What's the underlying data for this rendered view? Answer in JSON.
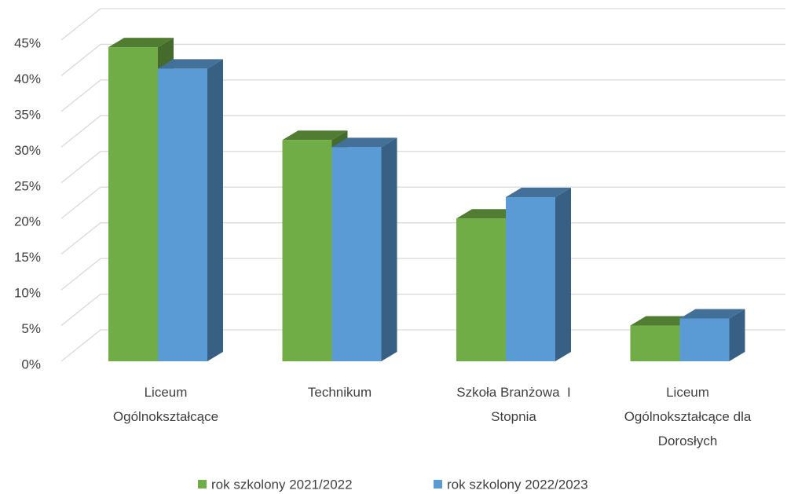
{
  "chart_data": {
    "type": "bar3d",
    "categories": [
      "Liceum Ogólnokształcące",
      "Technikum",
      "Szkoła Branżowa  I Stopnia",
      "Liceum Ogólnokształcące dla Dorosłych"
    ],
    "series": [
      {
        "name": "rok szkolony 2021/2022",
        "color": "#70ad47",
        "values": [
          44,
          31,
          20,
          5
        ]
      },
      {
        "name": "rok szkolony 2022/2023",
        "color": "#5b9bd5",
        "values": [
          41,
          30,
          23,
          6
        ]
      }
    ],
    "ylim": [
      0,
      45
    ],
    "yticks": [
      {
        "value": 0,
        "label": "0%"
      },
      {
        "value": 5,
        "label": "5%"
      },
      {
        "value": 10,
        "label": "10%"
      },
      {
        "value": 15,
        "label": "15%"
      },
      {
        "value": 20,
        "label": "20%"
      },
      {
        "value": 25,
        "label": "25%"
      },
      {
        "value": 30,
        "label": "30%"
      },
      {
        "value": 35,
        "label": "35%"
      },
      {
        "value": 40,
        "label": "40%"
      },
      {
        "value": 45,
        "label": "45%"
      }
    ],
    "grid": true,
    "legend": "bottom"
  }
}
